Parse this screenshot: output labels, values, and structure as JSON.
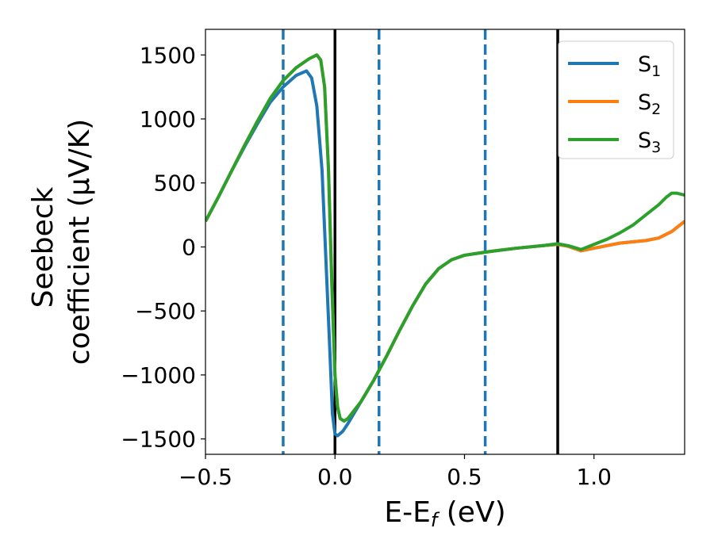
{
  "chart_data": {
    "type": "line",
    "xlabel": "E-E",
    "xlabel_sub": "f",
    "xlabel_unit": " (eV)",
    "ylabel_line1": "Seebeck",
    "ylabel_line2": "coefficient  (μV/K)",
    "xlim": [
      -0.5,
      1.35
    ],
    "ylim": [
      -1620,
      1700
    ],
    "xticks": [
      -0.5,
      0.0,
      0.5,
      1.0
    ],
    "xtick_labels": [
      "−0.5",
      "0.0",
      "0.5",
      "1.0"
    ],
    "yticks": [
      -1500,
      -1000,
      -500,
      0,
      500,
      1000,
      1500
    ],
    "ytick_labels": [
      "−1500",
      "−1000",
      "−500",
      "0",
      "500",
      "1000",
      "1500"
    ],
    "grid": false,
    "legend_position": "top-right",
    "series": [
      {
        "name": "S",
        "subscript": "1",
        "color": "#1f77b4",
        "points": [
          [
            -0.5,
            200
          ],
          [
            -0.45,
            390
          ],
          [
            -0.4,
            590
          ],
          [
            -0.35,
            780
          ],
          [
            -0.3,
            960
          ],
          [
            -0.25,
            1130
          ],
          [
            -0.2,
            1250
          ],
          [
            -0.15,
            1340
          ],
          [
            -0.11,
            1375
          ],
          [
            -0.09,
            1320
          ],
          [
            -0.07,
            1100
          ],
          [
            -0.05,
            600
          ],
          [
            -0.035,
            -100
          ],
          [
            -0.02,
            -800
          ],
          [
            -0.01,
            -1300
          ],
          [
            0.0,
            -1460
          ],
          [
            0.01,
            -1475
          ],
          [
            0.03,
            -1440
          ],
          [
            0.05,
            -1380
          ],
          [
            0.1,
            -1210
          ],
          [
            0.15,
            -1040
          ],
          [
            0.2,
            -850
          ],
          [
            0.25,
            -650
          ],
          [
            0.3,
            -460
          ],
          [
            0.35,
            -290
          ],
          [
            0.4,
            -170
          ],
          [
            0.45,
            -100
          ],
          [
            0.5,
            -65
          ],
          [
            0.55,
            -50
          ],
          [
            0.6,
            -35
          ],
          [
            0.7,
            -10
          ],
          [
            0.8,
            10
          ],
          [
            0.86,
            20
          ],
          [
            0.9,
            5
          ],
          [
            0.95,
            -30
          ],
          [
            1.0,
            -10
          ],
          [
            1.05,
            10
          ],
          [
            1.1,
            30
          ],
          [
            1.15,
            40
          ],
          [
            1.2,
            50
          ],
          [
            1.25,
            70
          ],
          [
            1.3,
            120
          ],
          [
            1.35,
            200
          ]
        ]
      },
      {
        "name": "S",
        "subscript": "2",
        "color": "#ff7f0e",
        "points": [
          [
            -0.5,
            200
          ],
          [
            -0.45,
            390
          ],
          [
            -0.4,
            590
          ],
          [
            -0.35,
            790
          ],
          [
            -0.3,
            980
          ],
          [
            -0.25,
            1160
          ],
          [
            -0.2,
            1300
          ],
          [
            -0.15,
            1400
          ],
          [
            -0.1,
            1470
          ],
          [
            -0.07,
            1500
          ],
          [
            -0.055,
            1460
          ],
          [
            -0.04,
            1250
          ],
          [
            -0.025,
            600
          ],
          [
            -0.012,
            -300
          ],
          [
            0.0,
            -1000
          ],
          [
            0.01,
            -1250
          ],
          [
            0.02,
            -1340
          ],
          [
            0.035,
            -1360
          ],
          [
            0.05,
            -1340
          ],
          [
            0.1,
            -1210
          ],
          [
            0.15,
            -1040
          ],
          [
            0.2,
            -850
          ],
          [
            0.25,
            -650
          ],
          [
            0.3,
            -460
          ],
          [
            0.35,
            -290
          ],
          [
            0.4,
            -170
          ],
          [
            0.45,
            -100
          ],
          [
            0.5,
            -65
          ],
          [
            0.55,
            -50
          ],
          [
            0.6,
            -35
          ],
          [
            0.7,
            -10
          ],
          [
            0.8,
            10
          ],
          [
            0.86,
            20
          ],
          [
            0.9,
            5
          ],
          [
            0.95,
            -30
          ],
          [
            1.0,
            -10
          ],
          [
            1.05,
            10
          ],
          [
            1.1,
            30
          ],
          [
            1.15,
            40
          ],
          [
            1.2,
            50
          ],
          [
            1.25,
            70
          ],
          [
            1.3,
            120
          ],
          [
            1.35,
            200
          ]
        ]
      },
      {
        "name": "S",
        "subscript": "3",
        "color": "#2ca02c",
        "points": [
          [
            -0.5,
            200
          ],
          [
            -0.45,
            390
          ],
          [
            -0.4,
            590
          ],
          [
            -0.35,
            790
          ],
          [
            -0.3,
            980
          ],
          [
            -0.25,
            1160
          ],
          [
            -0.2,
            1300
          ],
          [
            -0.15,
            1400
          ],
          [
            -0.1,
            1470
          ],
          [
            -0.07,
            1500
          ],
          [
            -0.055,
            1460
          ],
          [
            -0.04,
            1250
          ],
          [
            -0.025,
            600
          ],
          [
            -0.012,
            -300
          ],
          [
            0.0,
            -1000
          ],
          [
            0.01,
            -1250
          ],
          [
            0.02,
            -1340
          ],
          [
            0.035,
            -1360
          ],
          [
            0.05,
            -1340
          ],
          [
            0.1,
            -1210
          ],
          [
            0.15,
            -1040
          ],
          [
            0.2,
            -850
          ],
          [
            0.25,
            -650
          ],
          [
            0.3,
            -460
          ],
          [
            0.35,
            -290
          ],
          [
            0.4,
            -170
          ],
          [
            0.45,
            -100
          ],
          [
            0.5,
            -65
          ],
          [
            0.55,
            -50
          ],
          [
            0.6,
            -35
          ],
          [
            0.7,
            -10
          ],
          [
            0.8,
            10
          ],
          [
            0.86,
            25
          ],
          [
            0.9,
            10
          ],
          [
            0.95,
            -20
          ],
          [
            1.0,
            20
          ],
          [
            1.05,
            60
          ],
          [
            1.1,
            110
          ],
          [
            1.15,
            170
          ],
          [
            1.2,
            250
          ],
          [
            1.25,
            330
          ],
          [
            1.28,
            390
          ],
          [
            1.3,
            420
          ],
          [
            1.32,
            420
          ],
          [
            1.35,
            405
          ]
        ]
      }
    ],
    "vlines_dashed": {
      "color": "#1f77b4",
      "x": [
        -0.2,
        0.17,
        0.58
      ]
    },
    "vlines_solid": {
      "color": "#000000",
      "x": [
        0.0,
        0.86
      ]
    }
  }
}
